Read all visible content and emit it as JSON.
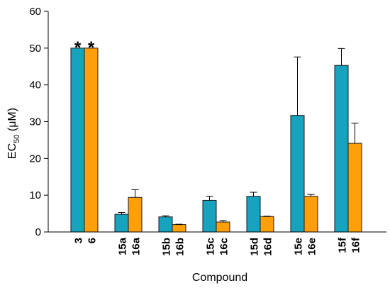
{
  "chart_data": {
    "type": "bar",
    "xlabel": "Compound",
    "ylabel": {
      "main": "EC",
      "sub": "50",
      "unit": " (μM)"
    },
    "ylim": [
      0,
      60
    ],
    "yticks": [
      "0",
      "10",
      "20",
      "30",
      "40",
      "50",
      "60"
    ],
    "grid": false,
    "legend": "none",
    "colors": {
      "blue": "#17A2BE",
      "orange": "#FF9F0A",
      "outline": "#1a1a1a"
    },
    "groups": [
      {
        "bars": [
          {
            "label": "3",
            "value": 50,
            "error": 0,
            "color": "blue",
            "marker": "*"
          },
          {
            "label": "6",
            "value": 50,
            "error": 0,
            "color": "orange",
            "marker": "*"
          }
        ]
      },
      {
        "bars": [
          {
            "label": "15a",
            "value": 4.8,
            "error": 0.5,
            "color": "blue",
            "marker": ""
          },
          {
            "label": "16a",
            "value": 9.4,
            "error": 2.1,
            "color": "orange",
            "marker": ""
          }
        ]
      },
      {
        "bars": [
          {
            "label": "15b",
            "value": 4.1,
            "error": 0.3,
            "color": "blue",
            "marker": ""
          },
          {
            "label": "16b",
            "value": 2.0,
            "error": 0.1,
            "color": "orange",
            "marker": ""
          }
        ]
      },
      {
        "bars": [
          {
            "label": "15c",
            "value": 8.6,
            "error": 1.1,
            "color": "blue",
            "marker": ""
          },
          {
            "label": "16c",
            "value": 2.7,
            "error": 0.4,
            "color": "orange",
            "marker": ""
          }
        ]
      },
      {
        "bars": [
          {
            "label": "15d",
            "value": 9.7,
            "error": 1.1,
            "color": "blue",
            "marker": ""
          },
          {
            "label": "16d",
            "value": 4.2,
            "error": 0.1,
            "color": "orange",
            "marker": ""
          }
        ]
      },
      {
        "bars": [
          {
            "label": "15e",
            "value": 31.7,
            "error": 15.9,
            "color": "blue",
            "marker": ""
          },
          {
            "label": "16e",
            "value": 9.7,
            "error": 0.5,
            "color": "orange",
            "marker": ""
          }
        ]
      },
      {
        "bars": [
          {
            "label": "15f",
            "value": 45.3,
            "error": 4.6,
            "color": "blue",
            "marker": ""
          },
          {
            "label": "16f",
            "value": 24.1,
            "error": 5.5,
            "color": "orange",
            "marker": ""
          }
        ]
      }
    ]
  }
}
